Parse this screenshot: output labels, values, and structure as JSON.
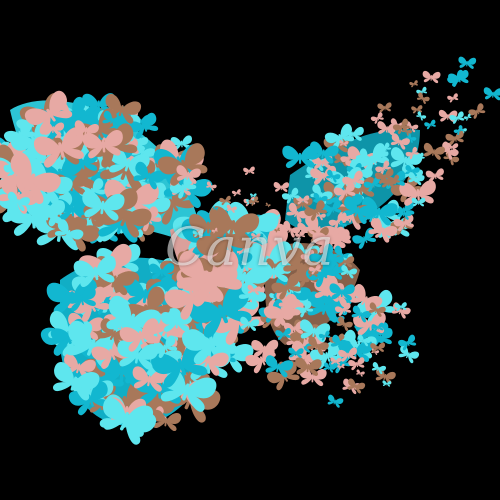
{
  "image": {
    "subject": "butterfly",
    "background_color": "#000000",
    "palette": {
      "teal": "#12b7d0",
      "aqua": "#5ee6ee",
      "brown": "#a8785a",
      "pink": "#e7a9a4"
    }
  },
  "watermark": {
    "text": "Canva"
  },
  "icons": {
    "main": "butterfly-mosaic",
    "small": "butterfly-icon"
  }
}
